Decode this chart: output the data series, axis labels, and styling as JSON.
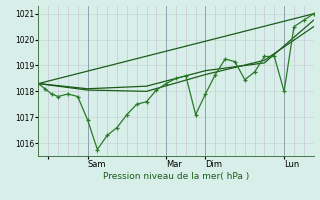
{
  "xlabel": "Pression niveau de la mer( hPa )",
  "ylim": [
    1015.5,
    1021.3
  ],
  "yticks": [
    1016,
    1017,
    1018,
    1019,
    1020,
    1021
  ],
  "xtick_positions": [
    6,
    30,
    78,
    102,
    150
  ],
  "xtick_labels": [
    "",
    "Sam",
    "Mar",
    "Dim",
    "Lun"
  ],
  "xlim": [
    0,
    168
  ],
  "bg_color": "#d8eee8",
  "grid_color_h": "#c8ddd8",
  "grid_color_v": "#c8c8d8",
  "line_color": "#1a5c1a",
  "line_color2": "#2a7a2a",
  "series1_x": [
    0,
    4,
    8,
    12,
    18,
    24,
    30,
    36,
    42,
    48,
    54,
    60,
    66,
    72,
    78,
    84,
    90,
    96,
    102,
    108,
    114,
    120,
    126,
    132,
    138,
    144,
    150,
    156,
    162,
    168
  ],
  "series1_y": [
    1018.3,
    1018.1,
    1017.9,
    1017.8,
    1017.9,
    1017.8,
    1016.9,
    1015.75,
    1016.3,
    1016.6,
    1017.1,
    1017.5,
    1017.6,
    1018.05,
    1018.3,
    1018.5,
    1018.6,
    1017.1,
    1017.9,
    1018.65,
    1019.25,
    1019.15,
    1018.45,
    1018.75,
    1019.35,
    1019.35,
    1018.0,
    1020.5,
    1020.75,
    1021.0
  ],
  "series2_x": [
    0,
    30,
    66,
    102,
    138,
    168
  ],
  "series2_y": [
    1018.3,
    1018.05,
    1018.0,
    1018.65,
    1019.2,
    1020.5
  ],
  "series3_x": [
    0,
    30,
    66,
    102,
    138,
    168
  ],
  "series3_y": [
    1018.3,
    1018.1,
    1018.2,
    1018.8,
    1019.1,
    1020.75
  ],
  "trend_x": [
    0,
    168
  ],
  "trend_y": [
    1018.3,
    1021.0
  ]
}
